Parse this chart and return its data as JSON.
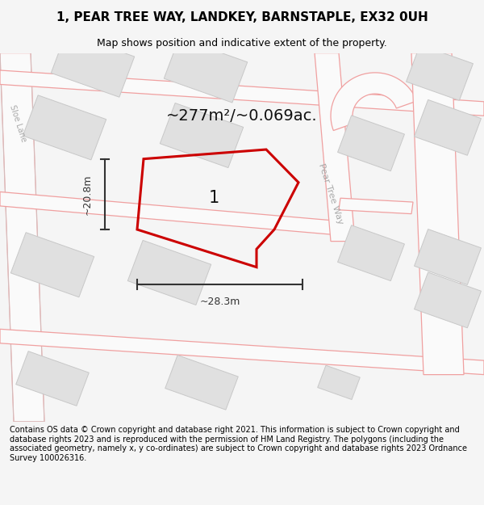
{
  "title": "1, PEAR TREE WAY, LANDKEY, BARNSTAPLE, EX32 0UH",
  "subtitle": "Map shows position and indicative extent of the property.",
  "footer": "Contains OS data © Crown copyright and database right 2021. This information is subject to Crown copyright and database rights 2023 and is reproduced with the permission of HM Land Registry. The polygons (including the associated geometry, namely x, y co-ordinates) are subject to Crown copyright and database rights 2023 Ordnance Survey 100026316.",
  "area_label": "~277m²/~0.069ac.",
  "plot_number": "1",
  "dim_height": "~20.8m",
  "dim_width": "~28.3m",
  "street_label": "Pear Tree Way",
  "street_label2": "Sloe Lane",
  "bg_color": "#f5f5f5",
  "map_bg": "#ffffff",
  "building_fill": "#e0e0e0",
  "building_stroke": "#c8c8c8",
  "road_stroke": "#f0a0a0",
  "road_stroke2": "#c8c8c8",
  "plot_stroke": "#cc0000",
  "plot_fill": "none",
  "dim_color": "#333333",
  "title_fontsize": 11,
  "subtitle_fontsize": 9,
  "footer_fontsize": 7,
  "area_fontsize": 14,
  "plot_num_fontsize": 15,
  "street_fontsize": 8
}
